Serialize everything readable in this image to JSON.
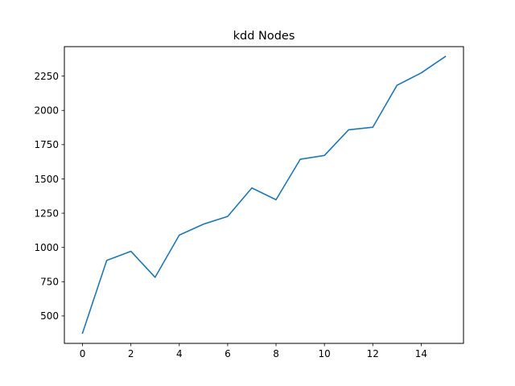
{
  "chart_data": {
    "type": "line",
    "title": "kdd Nodes",
    "xlabel": "",
    "ylabel": "",
    "xlim": [
      -0.75,
      15.75
    ],
    "ylim": [
      300,
      2465
    ],
    "xticks": [
      0,
      2,
      4,
      6,
      8,
      10,
      12,
      14
    ],
    "yticks": [
      500,
      750,
      1000,
      1250,
      1500,
      1750,
      2000,
      2250
    ],
    "grid": false,
    "series": [
      {
        "color": "#1f77b4",
        "x": [
          0,
          1,
          2,
          3,
          4,
          5,
          6,
          7,
          8,
          9,
          10,
          11,
          12,
          13,
          14,
          15
        ],
        "y": [
          375,
          905,
          972,
          782,
          1090,
          1170,
          1226,
          1434,
          1348,
          1643,
          1671,
          1858,
          1877,
          2183,
          2273,
          2393
        ]
      }
    ]
  }
}
